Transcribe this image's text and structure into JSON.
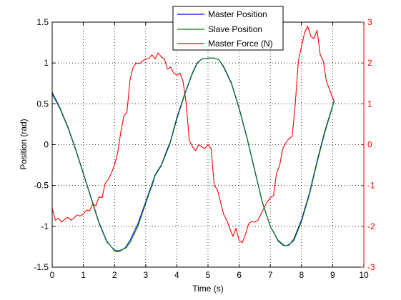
{
  "chart_data": {
    "type": "line",
    "xlabel": "Time (s)",
    "ylabel": "Position (rad)",
    "y2label": "",
    "xlim": [
      0,
      10
    ],
    "ylim": [
      -1.5,
      1.5
    ],
    "y2lim": [
      -3,
      3
    ],
    "xticks": [
      0,
      1,
      2,
      3,
      4,
      5,
      6,
      7,
      8,
      9,
      10
    ],
    "yticks": [
      -1.5,
      -1,
      -0.5,
      0,
      0.5,
      1,
      1.5
    ],
    "y2ticks": [
      -3,
      -2,
      -1,
      0,
      1,
      2,
      3
    ],
    "xtick_labels": [
      "0",
      "1",
      "2",
      "3",
      "4",
      "5",
      "6",
      "7",
      "8",
      "9",
      "10"
    ],
    "ytick_labels": [
      "-1.5",
      "-1",
      "-0.5",
      "0",
      "0.5",
      "1",
      "1.5"
    ],
    "y2tick_labels": [
      "-3",
      "-2",
      "-1",
      "0",
      "1",
      "2",
      "3"
    ],
    "grid": true,
    "grid_style": "dotted",
    "legend_position": "top-center",
    "colors": {
      "master_position": "#0000ff",
      "slave_position": "#008000",
      "master_force": "#ff0000",
      "right_axis": "#ff0000"
    },
    "series": [
      {
        "name": "Master Position",
        "axis": "left",
        "x": [
          0,
          0.25,
          0.5,
          0.75,
          1.0,
          1.25,
          1.5,
          1.75,
          2.0,
          2.1,
          2.2,
          2.35,
          2.5,
          2.75,
          3.0,
          3.25,
          3.3,
          3.5,
          3.75,
          3.78,
          4.0,
          4.25,
          4.5,
          4.65,
          4.8,
          5.0,
          5.2,
          5.35,
          5.5,
          5.75,
          6.0,
          6.25,
          6.5,
          6.75,
          7.0,
          7.25,
          7.4,
          7.5,
          7.6,
          7.75,
          8.0,
          8.25,
          8.5,
          8.75,
          9.0,
          9.05
        ],
        "y": [
          0.64,
          0.45,
          0.22,
          -0.05,
          -0.35,
          -0.65,
          -0.95,
          -1.18,
          -1.3,
          -1.31,
          -1.3,
          -1.26,
          -1.17,
          -0.97,
          -0.7,
          -0.43,
          -0.37,
          -0.25,
          0.0,
          0.02,
          0.33,
          0.62,
          0.88,
          1.0,
          1.05,
          1.06,
          1.06,
          1.04,
          0.95,
          0.75,
          0.44,
          0.08,
          -0.32,
          -0.72,
          -1.0,
          -1.18,
          -1.23,
          -1.24,
          -1.23,
          -1.16,
          -0.92,
          -0.6,
          -0.2,
          0.17,
          0.48,
          0.54
        ]
      },
      {
        "name": "Slave Position",
        "axis": "left",
        "x": [
          0,
          0.25,
          0.5,
          0.75,
          1.0,
          1.25,
          1.5,
          1.75,
          2.0,
          2.1,
          2.2,
          2.35,
          2.5,
          2.75,
          3.0,
          3.25,
          3.3,
          3.5,
          3.75,
          3.78,
          4.0,
          4.25,
          4.5,
          4.65,
          4.8,
          5.0,
          5.2,
          5.35,
          5.5,
          5.75,
          6.0,
          6.25,
          6.5,
          6.75,
          7.0,
          7.25,
          7.4,
          7.5,
          7.6,
          7.75,
          8.0,
          8.25,
          8.5,
          8.75,
          9.0,
          9.05
        ],
        "y": [
          0.62,
          0.44,
          0.21,
          -0.06,
          -0.36,
          -0.66,
          -0.96,
          -1.19,
          -1.29,
          -1.3,
          -1.29,
          -1.27,
          -1.2,
          -1.0,
          -0.72,
          -0.45,
          -0.38,
          -0.26,
          -0.02,
          0.01,
          0.31,
          0.61,
          0.87,
          0.99,
          1.05,
          1.06,
          1.06,
          1.04,
          0.96,
          0.76,
          0.45,
          0.09,
          -0.31,
          -0.71,
          -1.0,
          -1.17,
          -1.22,
          -1.24,
          -1.22,
          -1.18,
          -0.94,
          -0.62,
          -0.22,
          0.15,
          0.47,
          0.53
        ]
      },
      {
        "name": "Master Force (N)",
        "axis": "right",
        "x": [
          0,
          0.1,
          0.2,
          0.3,
          0.4,
          0.5,
          0.6,
          0.7,
          0.8,
          0.9,
          1.0,
          1.1,
          1.2,
          1.3,
          1.4,
          1.5,
          1.6,
          1.7,
          1.8,
          1.9,
          2.0,
          2.1,
          2.2,
          2.3,
          2.4,
          2.5,
          2.6,
          2.7,
          2.8,
          2.9,
          3.0,
          3.1,
          3.2,
          3.3,
          3.4,
          3.5,
          3.6,
          3.7,
          3.8,
          3.9,
          4.0,
          4.1,
          4.2,
          4.3,
          4.4,
          4.5,
          4.6,
          4.7,
          4.8,
          4.9,
          5.0,
          5.1,
          5.2,
          5.3,
          5.4,
          5.5,
          5.6,
          5.7,
          5.8,
          5.9,
          6.0,
          6.1,
          6.2,
          6.3,
          6.4,
          6.5,
          6.6,
          6.7,
          6.8,
          6.9,
          7.0,
          7.1,
          7.2,
          7.3,
          7.4,
          7.5,
          7.6,
          7.7,
          7.8,
          7.9,
          8.0,
          8.1,
          8.2,
          8.3,
          8.4,
          8.5,
          8.6,
          8.7,
          8.8,
          8.9,
          9.0,
          9.05
        ],
        "y": [
          -1.55,
          -1.85,
          -1.8,
          -1.9,
          -1.83,
          -1.78,
          -1.85,
          -1.8,
          -1.72,
          -1.75,
          -1.7,
          -1.6,
          -1.62,
          -1.45,
          -1.5,
          -1.28,
          -1.3,
          -0.95,
          -0.85,
          -0.7,
          -0.5,
          -0.2,
          0.3,
          0.7,
          0.8,
          1.6,
          1.9,
          2.0,
          1.98,
          2.05,
          2.1,
          2.1,
          2.2,
          2.1,
          2.25,
          2.15,
          2.1,
          1.85,
          1.9,
          1.75,
          1.7,
          1.75,
          1.55,
          1.0,
          0.1,
          -0.05,
          -0.15,
          0.0,
          -0.05,
          -0.1,
          0.0,
          -0.1,
          -1.0,
          -1.1,
          -1.4,
          -1.7,
          -1.85,
          -2.05,
          -2.25,
          -2.05,
          -2.35,
          -2.4,
          -2.2,
          -1.95,
          -1.88,
          -1.9,
          -1.85,
          -1.7,
          -1.55,
          -1.4,
          -1.3,
          -1.25,
          -0.7,
          -0.5,
          -0.1,
          0.05,
          0.15,
          0.2,
          1.0,
          2.05,
          2.4,
          2.75,
          2.9,
          2.65,
          2.6,
          2.8,
          2.2,
          2.05,
          1.55,
          1.35,
          1.15,
          1.05
        ]
      }
    ]
  }
}
